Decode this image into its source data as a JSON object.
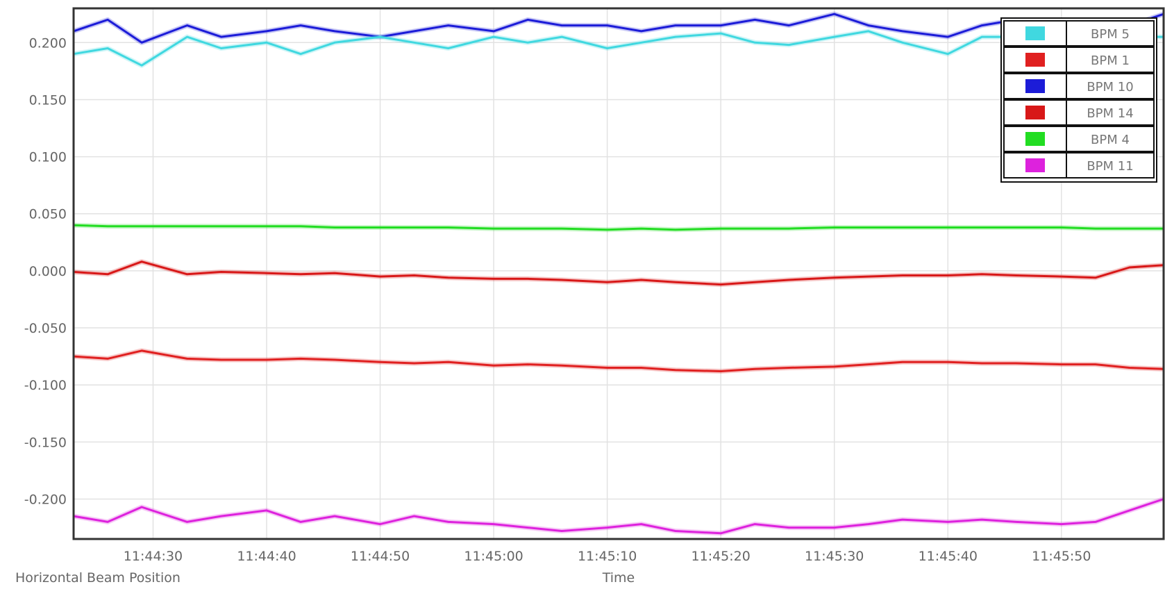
{
  "chart_data": {
    "type": "line",
    "title": "",
    "xlabel": "Time",
    "ylabel": "Horizontal Beam Position",
    "x_tick_labels": [
      "11:44:30",
      "11:44:40",
      "11:44:50",
      "11:45:00",
      "11:45:10",
      "11:45:20",
      "11:45:30",
      "11:45:40",
      "11:45:50"
    ],
    "x_range": [
      "11:44:23",
      "11:45:59"
    ],
    "y_tick_labels": [
      "0.200",
      "0.150",
      "0.100",
      "0.050",
      "0.000",
      "-0.050",
      "-0.100",
      "-0.150",
      "-0.200"
    ],
    "y_ticks": [
      0.2,
      0.15,
      0.1,
      0.05,
      0.0,
      -0.05,
      -0.1,
      -0.15,
      -0.2
    ],
    "ylim": [
      -0.235,
      0.23
    ],
    "grid": true,
    "legend_position": "top-right",
    "series": [
      {
        "name": "BPM 5",
        "color": "#40d8e0",
        "x": [
          "11:44:23",
          "11:44:26",
          "11:44:29",
          "11:44:33",
          "11:44:36",
          "11:44:40",
          "11:44:43",
          "11:44:46",
          "11:44:50",
          "11:44:53",
          "11:44:56",
          "11:45:00",
          "11:45:03",
          "11:45:06",
          "11:45:10",
          "11:45:13",
          "11:45:16",
          "11:45:20",
          "11:45:23",
          "11:45:26",
          "11:45:30",
          "11:45:33",
          "11:45:36",
          "11:45:40",
          "11:45:43",
          "11:45:46",
          "11:45:50",
          "11:45:53",
          "11:45:56",
          "11:45:59"
        ],
        "values": [
          0.19,
          0.195,
          0.18,
          0.205,
          0.195,
          0.2,
          0.19,
          0.2,
          0.205,
          0.2,
          0.195,
          0.205,
          0.2,
          0.205,
          0.195,
          0.2,
          0.205,
          0.208,
          0.2,
          0.198,
          0.205,
          0.21,
          0.2,
          0.19,
          0.205,
          0.205,
          0.2,
          0.203,
          0.205,
          0.205
        ]
      },
      {
        "name": "BPM 1",
        "color": "#e02020",
        "x": [
          "11:44:23",
          "11:44:26",
          "11:44:29",
          "11:44:33",
          "11:44:36",
          "11:44:40",
          "11:44:43",
          "11:44:46",
          "11:44:50",
          "11:44:53",
          "11:44:56",
          "11:45:00",
          "11:45:03",
          "11:45:06",
          "11:45:10",
          "11:45:13",
          "11:45:16",
          "11:45:20",
          "11:45:23",
          "11:45:26",
          "11:45:30",
          "11:45:33",
          "11:45:36",
          "11:45:40",
          "11:45:43",
          "11:45:46",
          "11:45:50",
          "11:45:53",
          "11:45:56",
          "11:45:59"
        ],
        "values": [
          -0.075,
          -0.077,
          -0.07,
          -0.077,
          -0.078,
          -0.078,
          -0.077,
          -0.078,
          -0.08,
          -0.081,
          -0.08,
          -0.083,
          -0.082,
          -0.083,
          -0.085,
          -0.085,
          -0.087,
          -0.088,
          -0.086,
          -0.085,
          -0.084,
          -0.082,
          -0.08,
          -0.08,
          -0.081,
          -0.081,
          -0.082,
          -0.082,
          -0.085,
          -0.086
        ]
      },
      {
        "name": "BPM 10",
        "color": "#1c1cd8",
        "x": [
          "11:44:23",
          "11:44:26",
          "11:44:29",
          "11:44:33",
          "11:44:36",
          "11:44:40",
          "11:44:43",
          "11:44:46",
          "11:44:50",
          "11:44:53",
          "11:44:56",
          "11:45:00",
          "11:45:03",
          "11:45:06",
          "11:45:10",
          "11:45:13",
          "11:45:16",
          "11:45:20",
          "11:45:23",
          "11:45:26",
          "11:45:30",
          "11:45:33",
          "11:45:36",
          "11:45:40",
          "11:45:43",
          "11:45:46",
          "11:45:50",
          "11:45:53",
          "11:45:56",
          "11:45:59"
        ],
        "values": [
          0.21,
          0.22,
          0.2,
          0.215,
          0.205,
          0.21,
          0.215,
          0.21,
          0.205,
          0.21,
          0.215,
          0.21,
          0.22,
          0.215,
          0.215,
          0.21,
          0.215,
          0.215,
          0.22,
          0.215,
          0.225,
          0.215,
          0.21,
          0.205,
          0.215,
          0.22,
          0.21,
          0.21,
          0.215,
          0.225
        ]
      },
      {
        "name": "BPM 14",
        "color": "#d81818",
        "x": [
          "11:44:23",
          "11:44:26",
          "11:44:29",
          "11:44:33",
          "11:44:36",
          "11:44:40",
          "11:44:43",
          "11:44:46",
          "11:44:50",
          "11:44:53",
          "11:44:56",
          "11:45:00",
          "11:45:03",
          "11:45:06",
          "11:45:10",
          "11:45:13",
          "11:45:16",
          "11:45:20",
          "11:45:23",
          "11:45:26",
          "11:45:30",
          "11:45:33",
          "11:45:36",
          "11:45:40",
          "11:45:43",
          "11:45:46",
          "11:45:50",
          "11:45:53",
          "11:45:56",
          "11:45:59"
        ],
        "values": [
          -0.001,
          -0.003,
          0.008,
          -0.003,
          -0.001,
          -0.002,
          -0.003,
          -0.002,
          -0.005,
          -0.004,
          -0.006,
          -0.007,
          -0.007,
          -0.008,
          -0.01,
          -0.008,
          -0.01,
          -0.012,
          -0.01,
          -0.008,
          -0.006,
          -0.005,
          -0.004,
          -0.004,
          -0.003,
          -0.004,
          -0.005,
          -0.006,
          0.003,
          0.005
        ]
      },
      {
        "name": "BPM 4",
        "color": "#22dd22",
        "x": [
          "11:44:23",
          "11:44:26",
          "11:44:29",
          "11:44:33",
          "11:44:36",
          "11:44:40",
          "11:44:43",
          "11:44:46",
          "11:44:50",
          "11:44:53",
          "11:44:56",
          "11:45:00",
          "11:45:03",
          "11:45:06",
          "11:45:10",
          "11:45:13",
          "11:45:16",
          "11:45:20",
          "11:45:23",
          "11:45:26",
          "11:45:30",
          "11:45:33",
          "11:45:36",
          "11:45:40",
          "11:45:43",
          "11:45:46",
          "11:45:50",
          "11:45:53",
          "11:45:56",
          "11:45:59"
        ],
        "values": [
          0.04,
          0.039,
          0.039,
          0.039,
          0.039,
          0.039,
          0.039,
          0.038,
          0.038,
          0.038,
          0.038,
          0.037,
          0.037,
          0.037,
          0.036,
          0.037,
          0.036,
          0.037,
          0.037,
          0.037,
          0.038,
          0.038,
          0.038,
          0.038,
          0.038,
          0.038,
          0.038,
          0.037,
          0.037,
          0.037
        ]
      },
      {
        "name": "BPM 11",
        "color": "#dd22dd",
        "x": [
          "11:44:23",
          "11:44:26",
          "11:44:29",
          "11:44:33",
          "11:44:36",
          "11:44:40",
          "11:44:43",
          "11:44:46",
          "11:44:50",
          "11:44:53",
          "11:44:56",
          "11:45:00",
          "11:45:03",
          "11:45:06",
          "11:45:10",
          "11:45:13",
          "11:45:16",
          "11:45:20",
          "11:45:23",
          "11:45:26",
          "11:45:30",
          "11:45:33",
          "11:45:36",
          "11:45:40",
          "11:45:43",
          "11:45:46",
          "11:45:50",
          "11:45:53",
          "11:45:56",
          "11:45:59"
        ],
        "values": [
          -0.215,
          -0.22,
          -0.207,
          -0.22,
          -0.215,
          -0.21,
          -0.22,
          -0.215,
          -0.222,
          -0.215,
          -0.22,
          -0.222,
          -0.225,
          -0.228,
          -0.225,
          -0.222,
          -0.228,
          -0.23,
          -0.222,
          -0.225,
          -0.225,
          -0.222,
          -0.218,
          -0.22,
          -0.218,
          -0.22,
          -0.222,
          -0.22,
          -0.21,
          -0.2
        ]
      }
    ]
  }
}
